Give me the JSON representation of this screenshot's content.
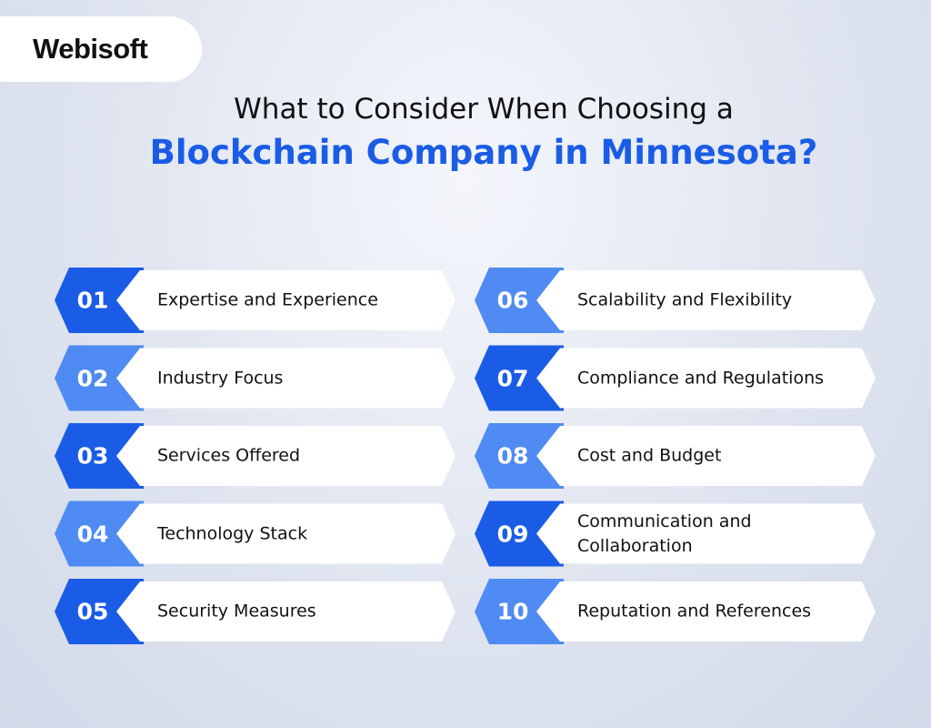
{
  "logo": "Webisoft",
  "title": {
    "line1": "What to Consider When Choosing a",
    "line2": "Blockchain Company in Minnesota?"
  },
  "items": [
    {
      "number": "01",
      "label": "Expertise and Experience",
      "color": "#1a5ce6"
    },
    {
      "number": "02",
      "label": "Industry Focus",
      "color": "#4f8bf2"
    },
    {
      "number": "03",
      "label": "Services Offered",
      "color": "#1a5ce6"
    },
    {
      "number": "04",
      "label": "Technology Stack",
      "color": "#4f8bf2"
    },
    {
      "number": "05",
      "label": "Security Measures",
      "color": "#1a5ce6"
    },
    {
      "number": "06",
      "label": "Scalability and Flexibility",
      "color": "#4f8bf2"
    },
    {
      "number": "07",
      "label": "Compliance and Regulations",
      "color": "#1a5ce6"
    },
    {
      "number": "08",
      "label": "Cost and Budget",
      "color": "#4f8bf2"
    },
    {
      "number": "09",
      "label": "Communication and Collaboration",
      "color": "#1a5ce6"
    },
    {
      "number": "10",
      "label": "Reputation and References",
      "color": "#4f8bf2"
    }
  ]
}
